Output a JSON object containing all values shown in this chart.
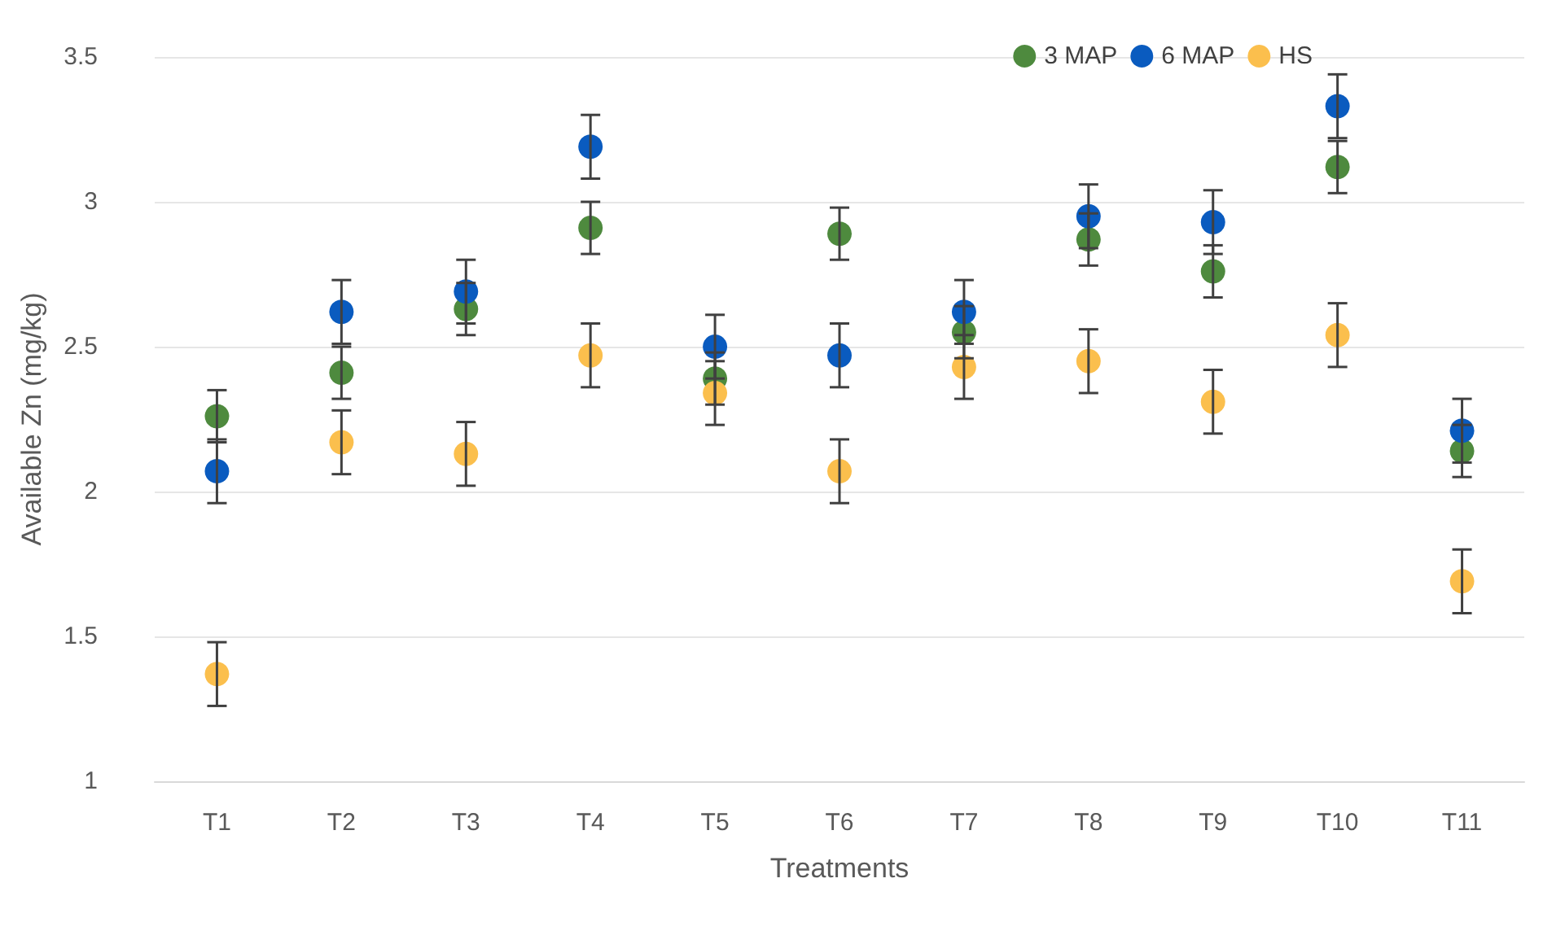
{
  "chart_data": {
    "type": "scatter",
    "xlabel": "Treatments",
    "ylabel": "Available Zn (mg/kg)",
    "categories": [
      "T1",
      "T2",
      "T3",
      "T4",
      "T5",
      "T6",
      "T7",
      "T8",
      "T9",
      "T10",
      "T11"
    ],
    "series": [
      {
        "name": "3 MAP",
        "color": "#4e8a3e",
        "values": [
          2.26,
          2.41,
          2.63,
          2.91,
          2.39,
          2.89,
          2.55,
          2.87,
          2.76,
          3.12,
          2.14
        ],
        "errors": [
          0.09,
          0.09,
          0.09,
          0.09,
          0.09,
          0.09,
          0.09,
          0.09,
          0.09,
          0.09,
          0.09
        ]
      },
      {
        "name": "6 MAP",
        "color": "#0a5bbf",
        "values": [
          2.07,
          2.62,
          2.69,
          3.19,
          2.5,
          2.47,
          2.62,
          2.95,
          2.93,
          3.33,
          2.21
        ],
        "errors": [
          0.11,
          0.11,
          0.11,
          0.11,
          0.11,
          0.11,
          0.11,
          0.11,
          0.11,
          0.11,
          0.11
        ]
      },
      {
        "name": "HS",
        "color": "#fbbf4d",
        "values": [
          1.37,
          2.17,
          2.13,
          2.47,
          2.34,
          2.07,
          2.43,
          2.45,
          2.31,
          2.54,
          1.69
        ],
        "errors": [
          0.11,
          0.11,
          0.11,
          0.11,
          0.11,
          0.11,
          0.11,
          0.11,
          0.11,
          0.11,
          0.11
        ]
      }
    ],
    "ylim": [
      1,
      3.5
    ],
    "yticks": [
      1,
      1.5,
      2,
      2.5,
      3,
      3.5
    ],
    "grid": "y",
    "legend": "top right",
    "marker": "circle"
  }
}
